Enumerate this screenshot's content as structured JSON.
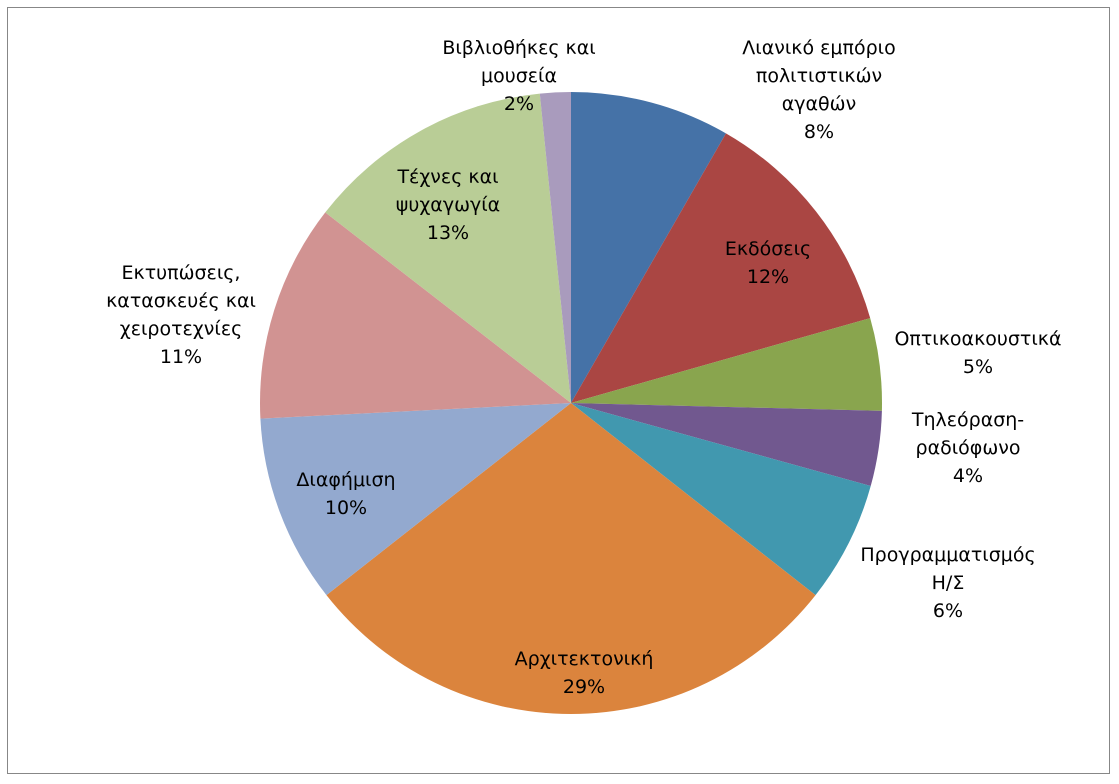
{
  "chart_data": {
    "type": "pie",
    "title": "",
    "start_angle_deg": 0,
    "direction": "clockwise",
    "legend": "none",
    "slices": [
      {
        "label": [
          "Λιανικό εμπόριο",
          "πολιτιστικών",
          "αγαθών"
        ],
        "percent_label": "8%",
        "value": 8.3,
        "color": "#4572A7"
      },
      {
        "label": [
          "Εκδόσεις"
        ],
        "percent_label": "12%",
        "value": 12.3,
        "color": "#AA4643"
      },
      {
        "label": [
          "Οπτικοακουστικά"
        ],
        "percent_label": "5%",
        "value": 4.8,
        "color": "#89A54E"
      },
      {
        "label": [
          "Τηλεόραση-",
          "ραδιόφωνο"
        ],
        "percent_label": "4%",
        "value": 3.9,
        "color": "#71588F"
      },
      {
        "label": [
          "Προγραμματισμός",
          "Η/Σ"
        ],
        "percent_label": "6%",
        "value": 6.3,
        "color": "#4198AF"
      },
      {
        "label": [
          "Αρχιτεκτονική"
        ],
        "percent_label": "29%",
        "value": 28.8,
        "color": "#DB843D"
      },
      {
        "label": [
          "Διαφήμιση"
        ],
        "percent_label": "10%",
        "value": 9.8,
        "color": "#93A9CF"
      },
      {
        "label": [
          "Εκτυπώσεις,",
          "κατασκευές και",
          "χειροτεχνίες"
        ],
        "percent_label": "11%",
        "value": 11.3,
        "color": "#D19392"
      },
      {
        "label": [
          "Τέχνες και",
          "ψυχαγωγία"
        ],
        "percent_label": "13%",
        "value": 12.9,
        "color": "#B9CD96"
      },
      {
        "label": [
          "Βιβλιοθήκες και",
          "μουσεία"
        ],
        "percent_label": "2%",
        "value": 1.6,
        "color": "#A99BBD"
      }
    ]
  }
}
